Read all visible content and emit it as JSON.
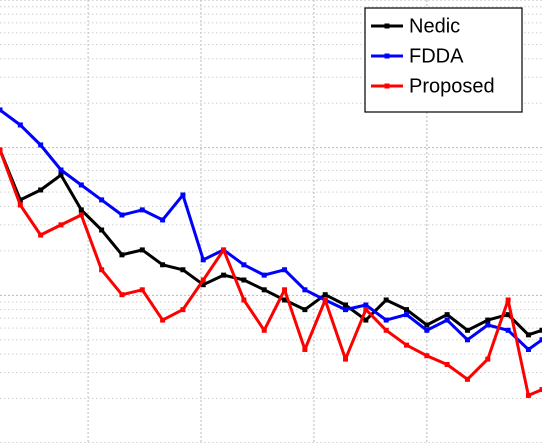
{
  "chart_data": {
    "type": "line",
    "x": [
      22,
      40,
      58,
      76,
      94,
      112,
      130,
      148,
      166,
      184,
      202,
      220,
      238,
      256,
      274,
      292,
      310,
      328,
      346,
      364,
      382,
      400,
      418,
      436,
      454,
      472,
      490,
      502
    ],
    "series": [
      {
        "name": "Nedic",
        "color": "#000000",
        "values": [
          0.0965,
          0.0443,
          0.0517,
          0.0653,
          0.0379,
          0.0277,
          0.0188,
          0.0203,
          0.0161,
          0.0149,
          0.0118,
          0.0137,
          0.0127,
          0.0109,
          0.0093,
          0.008,
          0.0101,
          0.0086,
          0.0068,
          0.0093,
          0.008,
          0.0063,
          0.0074,
          0.0058,
          0.0068,
          0.0074,
          0.0054,
          0.0058
        ]
      },
      {
        "name": "FDDA",
        "color": "#0000ff",
        "values": [
          0.18,
          0.1425,
          0.1043,
          0.0706,
          0.0559,
          0.0443,
          0.035,
          0.0379,
          0.0324,
          0.0478,
          0.0174,
          0.0203,
          0.0161,
          0.0137,
          0.0149,
          0.0109,
          0.0093,
          0.008,
          0.0086,
          0.0068,
          0.0074,
          0.0058,
          0.0068,
          0.005,
          0.0063,
          0.0058,
          0.0043,
          0.005
        ]
      },
      {
        "name": "Proposed",
        "color": "#ff0000",
        "values": [
          0.0965,
          0.0409,
          0.0256,
          0.03,
          0.035,
          0.0149,
          0.0101,
          0.0109,
          0.0068,
          0.008,
          0.0127,
          0.0203,
          0.0093,
          0.0058,
          0.0109,
          0.0043,
          0.0093,
          0.0037,
          0.008,
          0.0058,
          0.0046,
          0.0039,
          0.0034,
          0.0027,
          0.0037,
          0.0093,
          0.0021,
          0.0023
        ]
      }
    ],
    "xlim": [
      22,
      502
    ],
    "xticks": [
      100,
      200,
      300,
      400
    ],
    "ylim": [
      0.001,
      1
    ],
    "yticks": [
      0.001,
      0.01,
      0.1,
      1
    ],
    "ylog": true,
    "grid": true,
    "legend": "upper right"
  }
}
